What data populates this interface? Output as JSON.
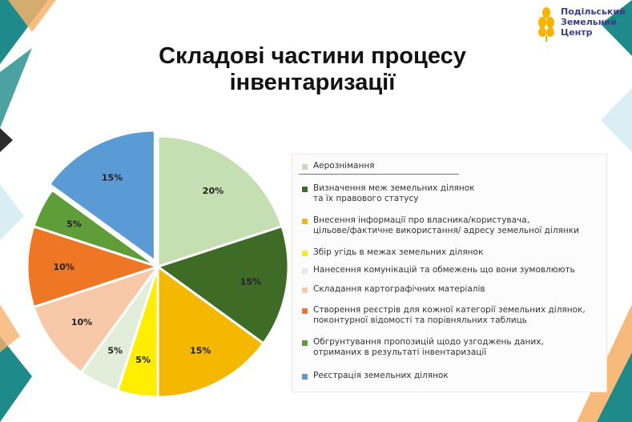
{
  "title_line1": "Складові частини процесу",
  "title_line2": "інвентаризації",
  "logo_text": [
    "Подільський",
    "Земельний",
    "Центр"
  ],
  "chart_data": {
    "type": "pie",
    "title": "Складові частини процесу інвентаризації",
    "slices": [
      {
        "label": "Аерознімання",
        "value": 20,
        "display": "20%",
        "color": "#c5dfb3"
      },
      {
        "label": "Визначення меж земельних ділянок\nта їх правового статусу",
        "value": 15,
        "display": "15%",
        "color": "#3e6b26"
      },
      {
        "label": "Внесення інформації про власника/користувача,\nцільове/фактичне використання/ адресу земельної ділянки",
        "value": 15,
        "display": "15%",
        "color": "#f5b800"
      },
      {
        "label": "Збір угідь в межах земельних ділянок",
        "value": 5,
        "display": "5%",
        "color": "#ffee00"
      },
      {
        "label": "Нанесення комунікацій та обмежень що вони зумовлюють",
        "value": 5,
        "display": "5%",
        "color": "#e2eed9"
      },
      {
        "label": "Складання картографічних матеріалів",
        "value": 10,
        "display": "10%",
        "color": "#f8c9a8"
      },
      {
        "label": "Створення реєстрів для кожної категорії земельних ділянок,\nпоконтурної відомості та порівняльних таблиць",
        "value": 10,
        "display": "10%",
        "color": "#ee7725"
      },
      {
        "label": "Обгрунтування пропозицій щодо узгоджень даних,\nотриманих в результаті інвентаризації",
        "value": 5,
        "display": "5%",
        "color": "#5f9d38"
      },
      {
        "label": "Реєстрація земельних ділянок",
        "value": 15,
        "display": "15%",
        "color": "#5b9bd5"
      }
    ],
    "legend_position": "right"
  }
}
